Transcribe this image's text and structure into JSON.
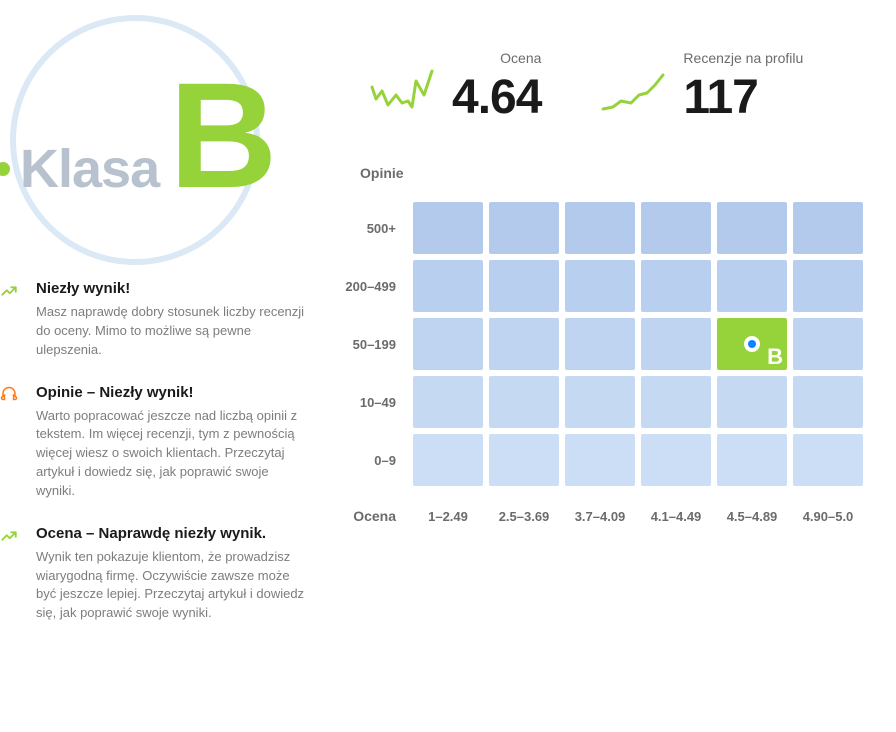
{
  "colors": {
    "accent_green": "#96d33a",
    "accent_blue": "#0a84ff",
    "accent_orange": "#ff7a1a",
    "circle_border": "#dbe8f6",
    "label_gray": "#b7c2ce",
    "text_muted": "#6b6b6b",
    "text_body": "#7d7d7d",
    "text_strong": "#1a1a1a",
    "cell_base": "#b9cfef",
    "cell_highlight": "#96d33a"
  },
  "badge": {
    "label": "Klasa",
    "grade": "B"
  },
  "tips": [
    {
      "icon": "trend-up-icon",
      "icon_color": "#96d33a",
      "title": "Niezły wynik!",
      "body": "Masz naprawdę dobry stosunek liczby recenzji do oceny. Mimo to możliwe są pewne ulepszenia."
    },
    {
      "icon": "headphones-icon",
      "icon_color": "#ff7a1a",
      "title": "Opinie – Niezły wynik!",
      "body": "Warto popracować jeszcze nad liczbą opinii z tekstem. Im więcej recenzji, tym z pewnością więcej wiesz o swoich klientach. Przeczytaj artykuł i dowiedz się, jak poprawić swoje wyniki."
    },
    {
      "icon": "trend-up-icon",
      "icon_color": "#96d33a",
      "title": "Ocena – Naprawdę niezły wynik.",
      "body": "Wynik ten pokazuje klientom, że prowadzisz wiarygodną firmę. Oczywiście zawsze może być jeszcze lepiej. Przeczytaj artykuł i dowiedz się, jak poprawić swoje wyniki."
    }
  ],
  "metrics": {
    "rating": {
      "label": "Ocena",
      "value": "4.64",
      "spark_color": "#96d33a"
    },
    "reviews": {
      "label": "Recenzje na profilu",
      "value": "117",
      "spark_color": "#96d33a"
    }
  },
  "grid": {
    "y_title": "Opinie",
    "x_title": "Ocena",
    "row_labels": [
      "500+",
      "200–499",
      "50–199",
      "10–49",
      "0–9"
    ],
    "col_labels": [
      "1–2.49",
      "2.5–3.69",
      "3.7–4.09",
      "4.1–4.49",
      "4.5–4.89",
      "4.90–5.0"
    ],
    "cell_color": "#b9cfef",
    "cell_colors_row": [
      [
        "#b3caec",
        "#b3caec",
        "#b3caec",
        "#b3caec",
        "#b3caec",
        "#b3caec"
      ],
      [
        "#b9cfef",
        "#b9cfef",
        "#b9cfef",
        "#b9cfef",
        "#b9cfef",
        "#b9cfef"
      ],
      [
        "#bfd4f1",
        "#bfd4f1",
        "#bfd4f1",
        "#bfd4f1",
        "#bfd4f1",
        "#bfd4f1"
      ],
      [
        "#c5d9f3",
        "#c5d9f3",
        "#c5d9f3",
        "#c5d9f3",
        "#c5d9f3",
        "#c5d9f3"
      ],
      [
        "#cbdef5",
        "#cbdef5",
        "#cbdef5",
        "#cbdef5",
        "#cbdef5",
        "#cbdef5"
      ]
    ],
    "highlight": {
      "row": 2,
      "col": 4,
      "bg": "#96d33a",
      "ring_inner": "#0a84ff",
      "letter": "B"
    }
  }
}
